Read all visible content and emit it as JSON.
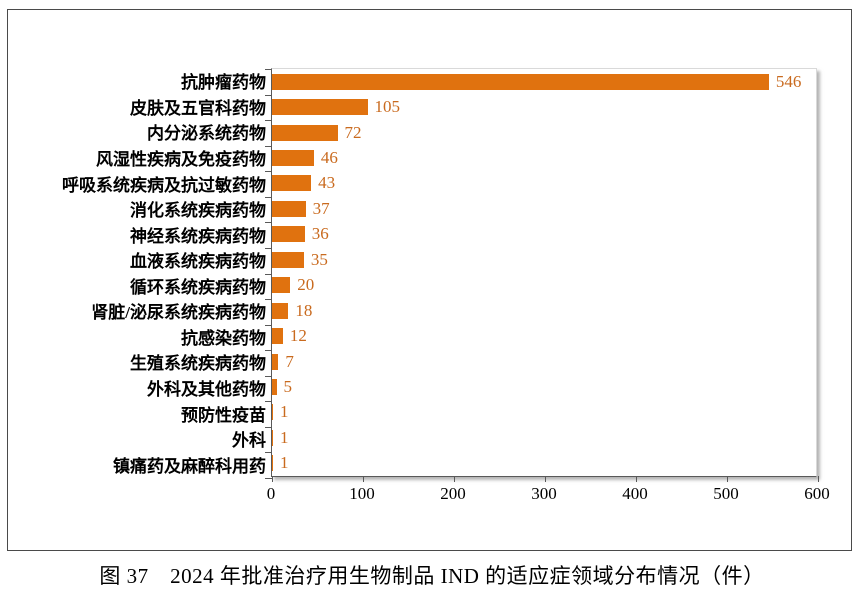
{
  "figure": {
    "caption": "图 37　2024 年批准治疗用生物制品 IND 的适应症领域分布情况（件）"
  },
  "chart_data": {
    "type": "bar",
    "orientation": "horizontal",
    "title": "",
    "xlabel": "",
    "ylabel": "",
    "xlim": [
      0,
      600
    ],
    "x_ticks": [
      0,
      100,
      200,
      300,
      400,
      500,
      600
    ],
    "grid": false,
    "legend": false,
    "bar_color": "#E0720F",
    "value_label_color": "#C96A1E",
    "axis_color": "#595959",
    "frame_border_color": "#4A4A4A",
    "categories": [
      "抗肿瘤药物",
      "皮肤及五官科药物",
      "内分泌系统药物",
      "风湿性疾病及免疫药物",
      "呼吸系统疾病及抗过敏药物",
      "消化系统疾病药物",
      "神经系统疾病药物",
      "血液系统疾病药物",
      "循环系统疾病药物",
      "肾脏/泌尿系统疾病药物",
      "抗感染药物",
      "生殖系统疾病药物",
      "外科及其他药物",
      "预防性疫苗",
      "外科",
      "镇痛药及麻醉科用药"
    ],
    "values": [
      546,
      105,
      72,
      46,
      43,
      37,
      36,
      35,
      20,
      18,
      12,
      7,
      5,
      1,
      1,
      1
    ]
  }
}
